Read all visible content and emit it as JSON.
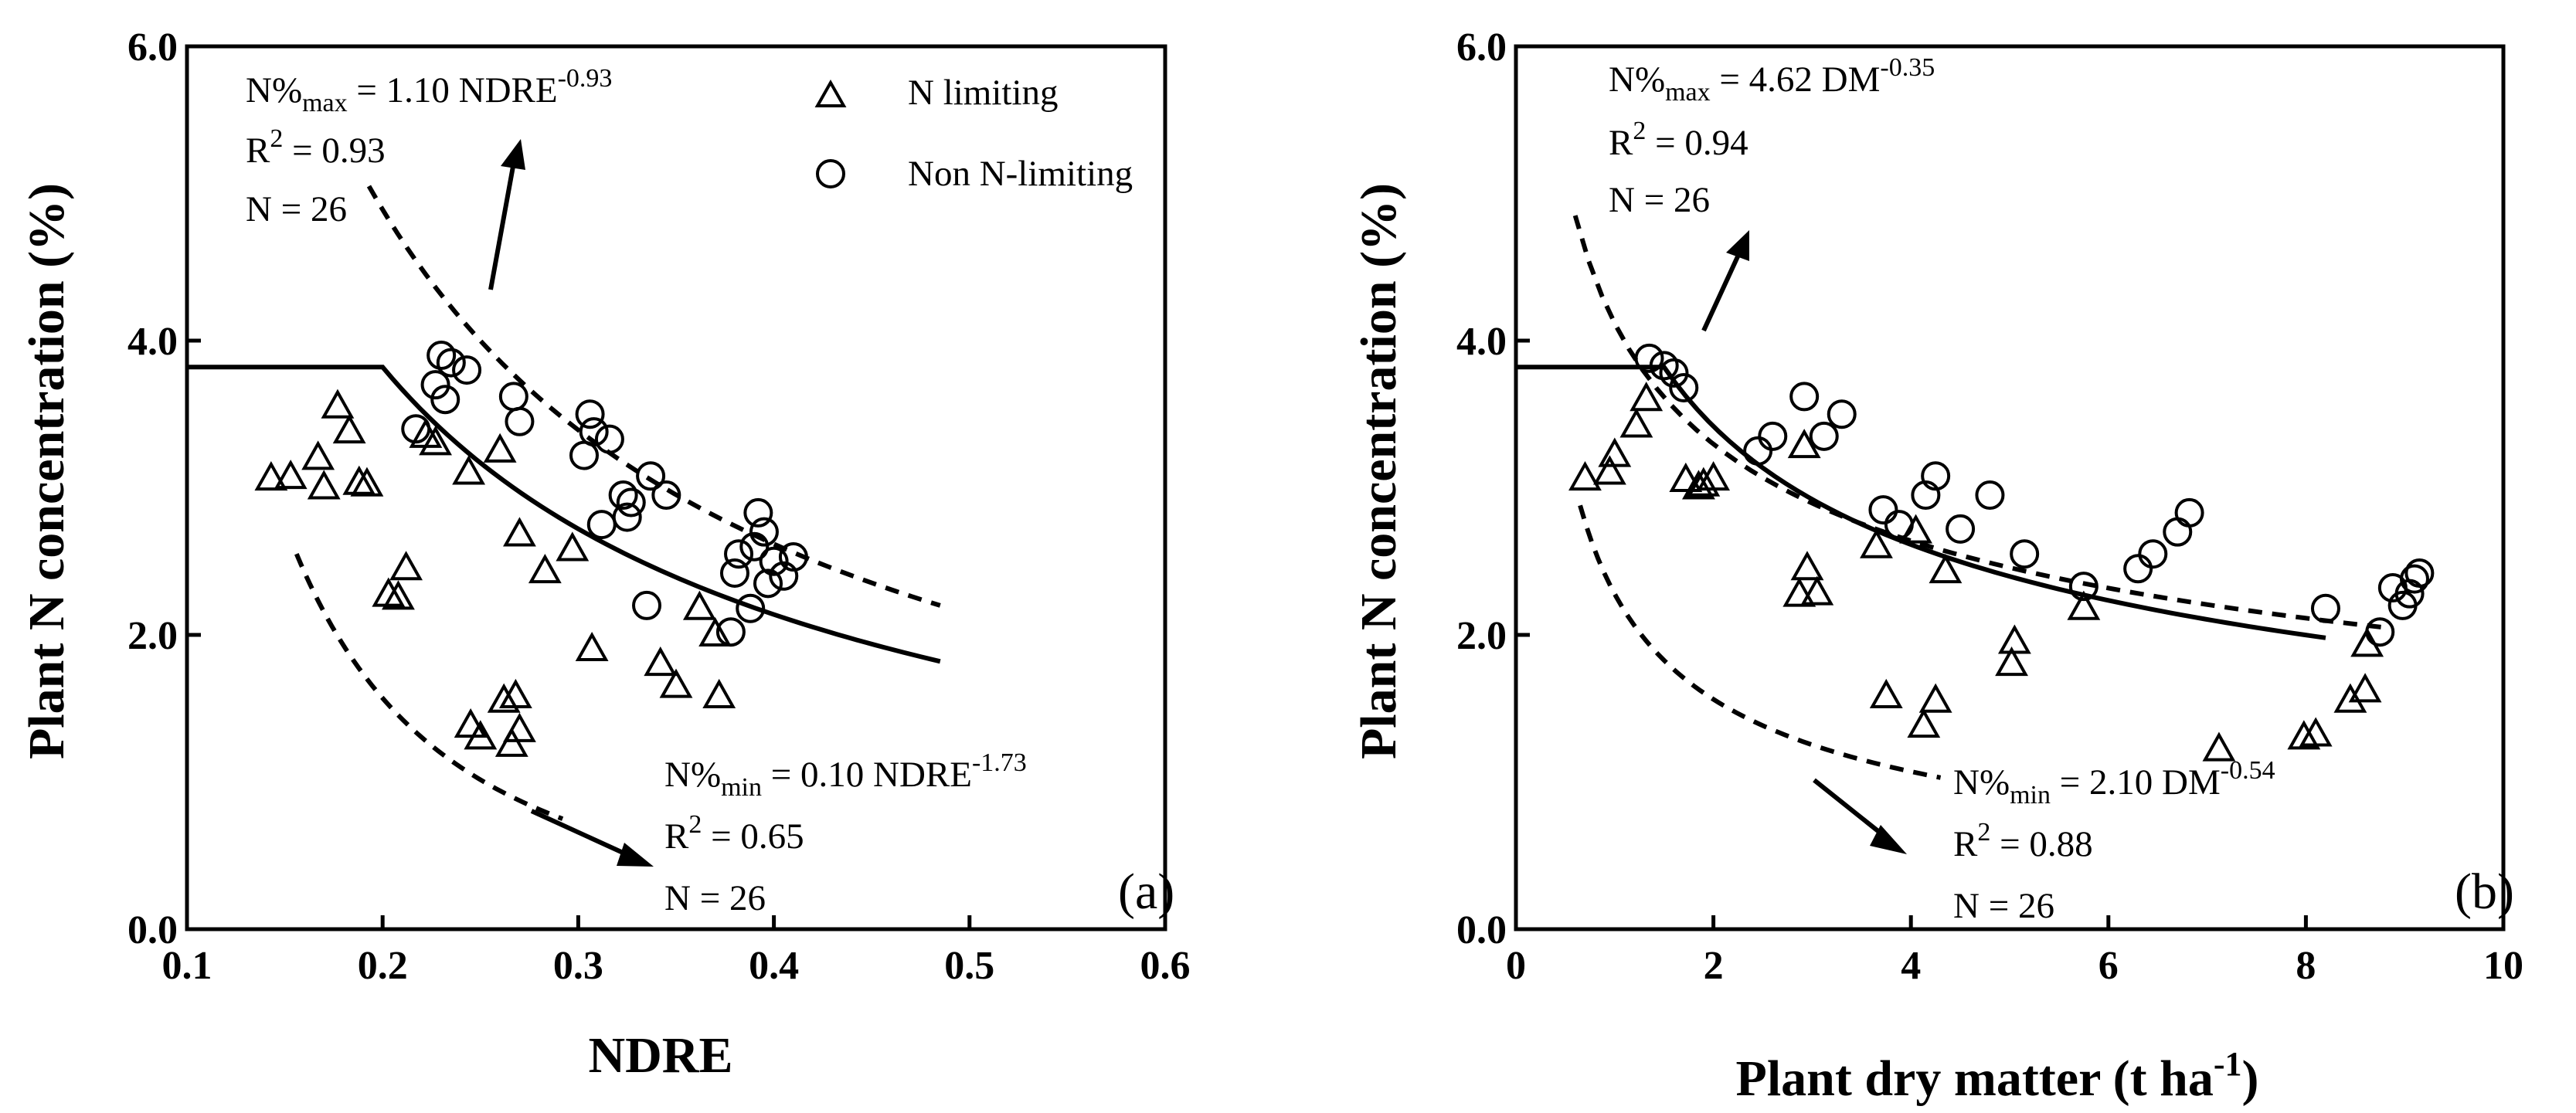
{
  "chart_data": [
    {
      "type": "scatter",
      "panel_label": "(a)",
      "xlabel": "NDRE",
      "ylabel": "Plant N concentration (%)",
      "xlim": [
        0.1,
        0.6
      ],
      "ylim": [
        0.0,
        6.0
      ],
      "x_ticks": [
        "0.1",
        "0.2",
        "0.3",
        "0.4",
        "0.5",
        "0.6"
      ],
      "y_ticks": [
        "0.0",
        "2.0",
        "4.0",
        "6.0"
      ],
      "legend": [
        {
          "symbol": "triangle",
          "label": "N limiting"
        },
        {
          "symbol": "circle",
          "label": "Non N-limiting"
        }
      ],
      "annotations": {
        "max": {
          "prefix": "N%",
          "sub": "max",
          "eq": " = 1.10 NDRE",
          "exp": "-0.93",
          "r2_label": "R",
          "r2_exp": "2",
          "r2_value": " = 0.93",
          "n": "N = 26"
        },
        "min": {
          "prefix": "N%",
          "sub": "min",
          "eq": " = 0.10 NDRE",
          "exp": "-1.73",
          "r2_label": "R",
          "r2_exp": "2",
          "r2_value": " = 0.65",
          "n": "N = 26"
        }
      },
      "critical_curve": {
        "plateau": 3.82,
        "break_x": 0.2,
        "x_end": 0.485,
        "end_y": 1.82
      },
      "max_curve": {
        "x_start": 0.193,
        "x_end": 0.485,
        "y_start": 5.05,
        "y_end": 2.2
      },
      "min_curve": {
        "x_start": 0.156,
        "x_end": 0.292,
        "y_start": 2.55,
        "y_end": 0.75
      },
      "series": [
        {
          "name": "N limiting",
          "points": [
            [
              0.143,
              3.06
            ],
            [
              0.153,
              3.07
            ],
            [
              0.167,
              3.2
            ],
            [
              0.17,
              3.0
            ],
            [
              0.177,
              3.55
            ],
            [
              0.183,
              3.38
            ],
            [
              0.188,
              3.03
            ],
            [
              0.192,
              3.02
            ],
            [
              0.203,
              2.27
            ],
            [
              0.208,
              2.25
            ],
            [
              0.212,
              2.45
            ],
            [
              0.222,
              3.35
            ],
            [
              0.227,
              3.3
            ],
            [
              0.244,
              3.1
            ],
            [
              0.245,
              1.38
            ],
            [
              0.25,
              1.3
            ],
            [
              0.26,
              3.25
            ],
            [
              0.262,
              1.55
            ],
            [
              0.266,
              1.25
            ],
            [
              0.268,
              1.58
            ],
            [
              0.27,
              2.68
            ],
            [
              0.27,
              1.35
            ],
            [
              0.283,
              2.43
            ],
            [
              0.297,
              2.58
            ],
            [
              0.307,
              1.9
            ],
            [
              0.342,
              1.8
            ],
            [
              0.35,
              1.65
            ],
            [
              0.362,
              2.18
            ],
            [
              0.37,
              2.0
            ],
            [
              0.372,
              1.58
            ]
          ]
        },
        {
          "name": "Non N-limiting",
          "points": [
            [
              0.217,
              3.4
            ],
            [
              0.227,
              3.7
            ],
            [
              0.23,
              3.9
            ],
            [
              0.232,
              3.6
            ],
            [
              0.235,
              3.85
            ],
            [
              0.243,
              3.8
            ],
            [
              0.267,
              3.62
            ],
            [
              0.27,
              3.45
            ],
            [
              0.303,
              3.22
            ],
            [
              0.306,
              3.5
            ],
            [
              0.308,
              3.38
            ],
            [
              0.312,
              2.75
            ],
            [
              0.316,
              3.33
            ],
            [
              0.323,
              2.95
            ],
            [
              0.325,
              2.8
            ],
            [
              0.327,
              2.9
            ],
            [
              0.335,
              2.2
            ],
            [
              0.337,
              3.08
            ],
            [
              0.345,
              2.95
            ],
            [
              0.378,
              2.02
            ],
            [
              0.38,
              2.42
            ],
            [
              0.382,
              2.55
            ],
            [
              0.388,
              2.18
            ],
            [
              0.39,
              2.6
            ],
            [
              0.392,
              2.83
            ],
            [
              0.395,
              2.7
            ],
            [
              0.397,
              2.35
            ],
            [
              0.4,
              2.5
            ],
            [
              0.405,
              2.4
            ],
            [
              0.41,
              2.53
            ]
          ]
        }
      ]
    },
    {
      "type": "scatter",
      "panel_label": "(b)",
      "xlabel_main": "Plant dry matter (t ha",
      "xlabel_exp": "-1",
      "xlabel_close": ")",
      "ylabel": "Plant N concentration (%)",
      "xlim": [
        0,
        10
      ],
      "ylim": [
        0.0,
        6.0
      ],
      "x_ticks": [
        "0",
        "2",
        "4",
        "6",
        "8",
        "10"
      ],
      "y_ticks": [
        "0.0",
        "2.0",
        "4.0",
        "6.0"
      ],
      "annotations": {
        "max": {
          "prefix": "N%",
          "sub": "max",
          "eq": " = 4.62 DM",
          "exp": "-0.35",
          "r2_label": "R",
          "r2_exp": "2",
          "r2_value": " = 0.94",
          "n": "N = 26"
        },
        "min": {
          "prefix": "N%",
          "sub": "min",
          "eq": " = 2.10 DM",
          "exp": "-0.54",
          "r2_label": "R",
          "r2_exp": "2",
          "r2_value": " = 0.88",
          "n": "N = 26"
        }
      },
      "critical_curve": {
        "plateau": 3.82,
        "break_x": 1.5,
        "x_end": 8.2,
        "end_y": 1.98
      },
      "max_curve": {
        "x_start": 0.6,
        "x_end": 8.8,
        "y_start": 4.85,
        "y_end": 2.05
      },
      "min_curve": {
        "x_start": 0.65,
        "x_end": 4.3,
        "y_start": 2.88,
        "y_end": 1.03
      },
      "series": [
        {
          "name": "N limiting",
          "points": [
            [
              0.7,
              3.06
            ],
            [
              0.95,
              3.1
            ],
            [
              1.0,
              3.22
            ],
            [
              1.22,
              3.42
            ],
            [
              1.32,
              3.6
            ],
            [
              1.72,
              3.05
            ],
            [
              1.85,
              3.0
            ],
            [
              1.9,
              3.02
            ],
            [
              2.0,
              3.06
            ],
            [
              2.87,
              2.27
            ],
            [
              2.92,
              3.28
            ],
            [
              2.95,
              2.45
            ],
            [
              3.05,
              2.28
            ],
            [
              3.65,
              2.6
            ],
            [
              3.75,
              1.58
            ],
            [
              4.05,
              2.7
            ],
            [
              4.13,
              1.38
            ],
            [
              4.25,
              1.55
            ],
            [
              4.35,
              2.43
            ],
            [
              5.02,
              1.8
            ],
            [
              5.05,
              1.95
            ],
            [
              5.75,
              2.18
            ],
            [
              7.12,
              1.22
            ],
            [
              7.98,
              1.3
            ],
            [
              8.1,
              1.32
            ],
            [
              8.45,
              1.55
            ],
            [
              8.6,
              1.62
            ],
            [
              8.62,
              1.93
            ]
          ]
        },
        {
          "name": "Non N-limiting",
          "points": [
            [
              1.35,
              3.88
            ],
            [
              1.5,
              3.83
            ],
            [
              1.6,
              3.78
            ],
            [
              1.7,
              3.68
            ],
            [
              2.45,
              3.25
            ],
            [
              2.6,
              3.35
            ],
            [
              2.92,
              3.62
            ],
            [
              3.12,
              3.35
            ],
            [
              3.3,
              3.5
            ],
            [
              3.72,
              2.85
            ],
            [
              3.88,
              2.75
            ],
            [
              4.15,
              2.95
            ],
            [
              4.25,
              3.08
            ],
            [
              4.5,
              2.72
            ],
            [
              4.8,
              2.95
            ],
            [
              5.15,
              2.55
            ],
            [
              5.75,
              2.33
            ],
            [
              6.3,
              2.45
            ],
            [
              6.45,
              2.55
            ],
            [
              6.7,
              2.7
            ],
            [
              6.82,
              2.83
            ],
            [
              8.2,
              2.18
            ],
            [
              8.75,
              2.02
            ],
            [
              8.88,
              2.32
            ],
            [
              8.98,
              2.2
            ],
            [
              9.05,
              2.28
            ],
            [
              9.1,
              2.38
            ],
            [
              9.15,
              2.42
            ]
          ]
        }
      ]
    }
  ]
}
